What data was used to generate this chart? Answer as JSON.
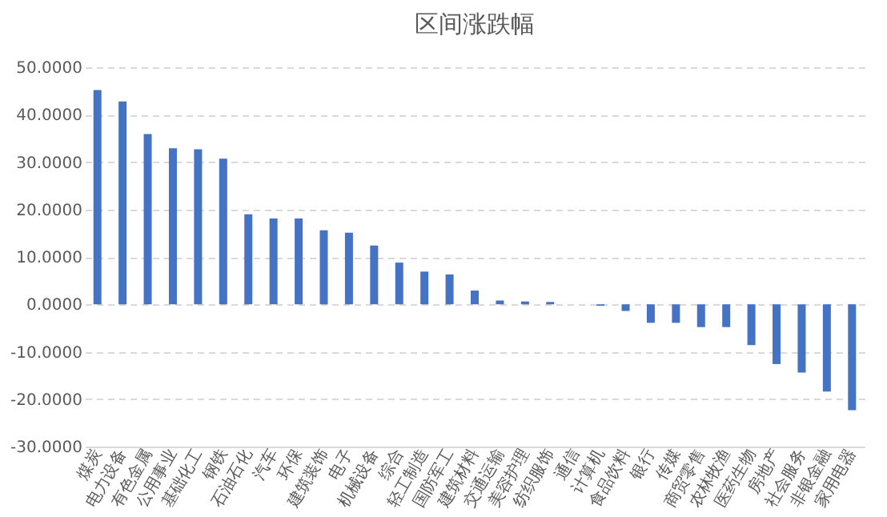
{
  "chart_data": {
    "type": "bar",
    "title": "区间涨跌幅",
    "categories": [
      "煤炭",
      "电力设备",
      "有色金属",
      "公用事业",
      "基础化工",
      "钢铁",
      "石油石化",
      "汽车",
      "环保",
      "建筑装饰",
      "电子",
      "机械设备",
      "综合",
      "轻工制造",
      "国防军工",
      "建筑材料",
      "交通运输",
      "美容护理",
      "纺织服饰",
      "通信",
      "计算机",
      "食品饮料",
      "银行",
      "传媒",
      "商贸零售",
      "农林牧渔",
      "医药生物",
      "房地产",
      "社会服务",
      "非银金融",
      "家用电器"
    ],
    "values": [
      45.2,
      42.8,
      35.9,
      32.9,
      32.7,
      30.7,
      19.0,
      18.1,
      18.1,
      15.6,
      15.1,
      12.4,
      8.8,
      6.9,
      6.3,
      2.9,
      0.8,
      0.6,
      0.5,
      0.0,
      -0.3,
      -1.4,
      -3.9,
      -3.9,
      -4.8,
      -4.8,
      -8.6,
      -12.6,
      -14.4,
      -18.4,
      -22.3
    ],
    "color": "#4472c4",
    "ylim": [
      -30,
      50
    ],
    "yticks": [
      {
        "value": -30,
        "label": "-30.0000"
      },
      {
        "value": -20,
        "label": "-20.0000"
      },
      {
        "value": -10,
        "label": "-10.0000"
      },
      {
        "value": 0,
        "label": "0.0000"
      },
      {
        "value": 10,
        "label": "10.0000"
      },
      {
        "value": 20,
        "label": "20.0000"
      },
      {
        "value": 30,
        "label": "30.0000"
      },
      {
        "value": 40,
        "label": "40.0000"
      },
      {
        "value": 50,
        "label": "50.0000"
      }
    ],
    "grid": "y"
  }
}
